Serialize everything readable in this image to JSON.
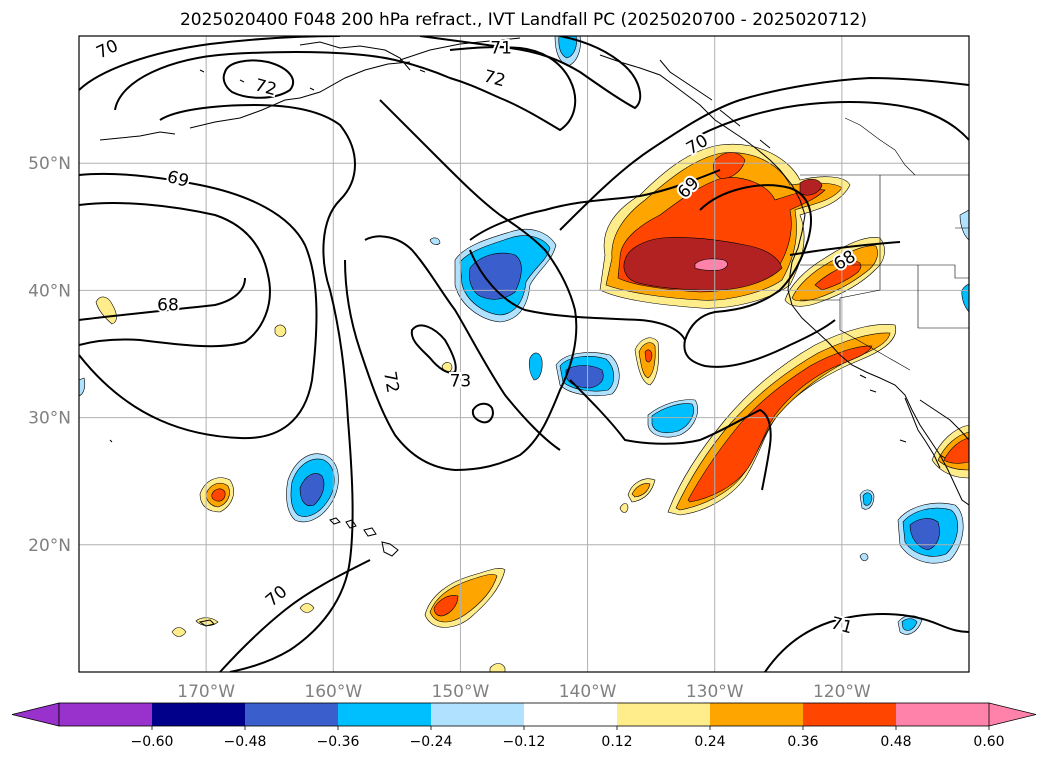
{
  "title": "2025020400 F048 200 hPa refract., IVT Landfall PC (2025020700 - 2025020712)",
  "map": {
    "lon_range": [
      -180,
      -110
    ],
    "lat_range": [
      10,
      60
    ],
    "lon_ticks": [
      {
        "value": -170,
        "label": "170°W"
      },
      {
        "value": -160,
        "label": "160°W"
      },
      {
        "value": -150,
        "label": "150°W"
      },
      {
        "value": -140,
        "label": "140°W"
      },
      {
        "value": -130,
        "label": "130°W"
      },
      {
        "value": -120,
        "label": "120°W"
      }
    ],
    "lat_ticks": [
      {
        "value": 50,
        "label": "50°N"
      },
      {
        "value": 40,
        "label": "40°N"
      },
      {
        "value": 30,
        "label": "30°N"
      },
      {
        "value": 20,
        "label": "20°N"
      }
    ],
    "gridlines": true,
    "contour_labels": [
      {
        "text": "70",
        "lon": -177.8,
        "lat": 59.0,
        "rot": -25
      },
      {
        "text": "71",
        "lon": -146.8,
        "lat": 59.1,
        "rot": 0
      },
      {
        "text": "72",
        "lon": -165.3,
        "lat": 56.0,
        "rot": 15
      },
      {
        "text": "72",
        "lon": -147.3,
        "lat": 56.7,
        "rot": 15
      },
      {
        "text": "70",
        "lon": -131.4,
        "lat": 51.5,
        "rot": -30
      },
      {
        "text": "69",
        "lon": -172.2,
        "lat": 48.8,
        "rot": 15
      },
      {
        "text": "69",
        "lon": -132.1,
        "lat": 48.1,
        "rot": -45
      },
      {
        "text": "68",
        "lon": -119.8,
        "lat": 42.4,
        "rot": -30
      },
      {
        "text": "68",
        "lon": -173.0,
        "lat": 38.9,
        "rot": 0
      },
      {
        "text": "72",
        "lon": -155.4,
        "lat": 32.8,
        "rot": 80
      },
      {
        "text": "73",
        "lon": -150.0,
        "lat": 32.9,
        "rot": 0
      },
      {
        "text": "70",
        "lon": -164.5,
        "lat": 16.0,
        "rot": -40
      },
      {
        "text": "71",
        "lon": -120.0,
        "lat": 13.7,
        "rot": 15
      }
    ]
  },
  "colorbar": {
    "levels": [
      "-0.60",
      "-0.48",
      "-0.36",
      "-0.24",
      "-0.12",
      "0.12",
      "0.24",
      "0.36",
      "0.48",
      "0.60"
    ],
    "colors": [
      "#9932cc",
      "#00008b",
      "#3a5fcd",
      "#00bfff",
      "#b0e2ff",
      "#ffffff",
      "#ffec8b",
      "#ffa500",
      "#ff4500",
      "#b22222",
      "#ff82ab"
    ]
  },
  "palette": {
    "neg1": "#b0e2ff",
    "neg2": "#00bfff",
    "neg3": "#3a5fcd",
    "pos1": "#ffec8b",
    "pos2": "#ffa500",
    "pos3": "#ff4500",
    "pos4": "#b22222",
    "pos5": "#ff82ab"
  }
}
